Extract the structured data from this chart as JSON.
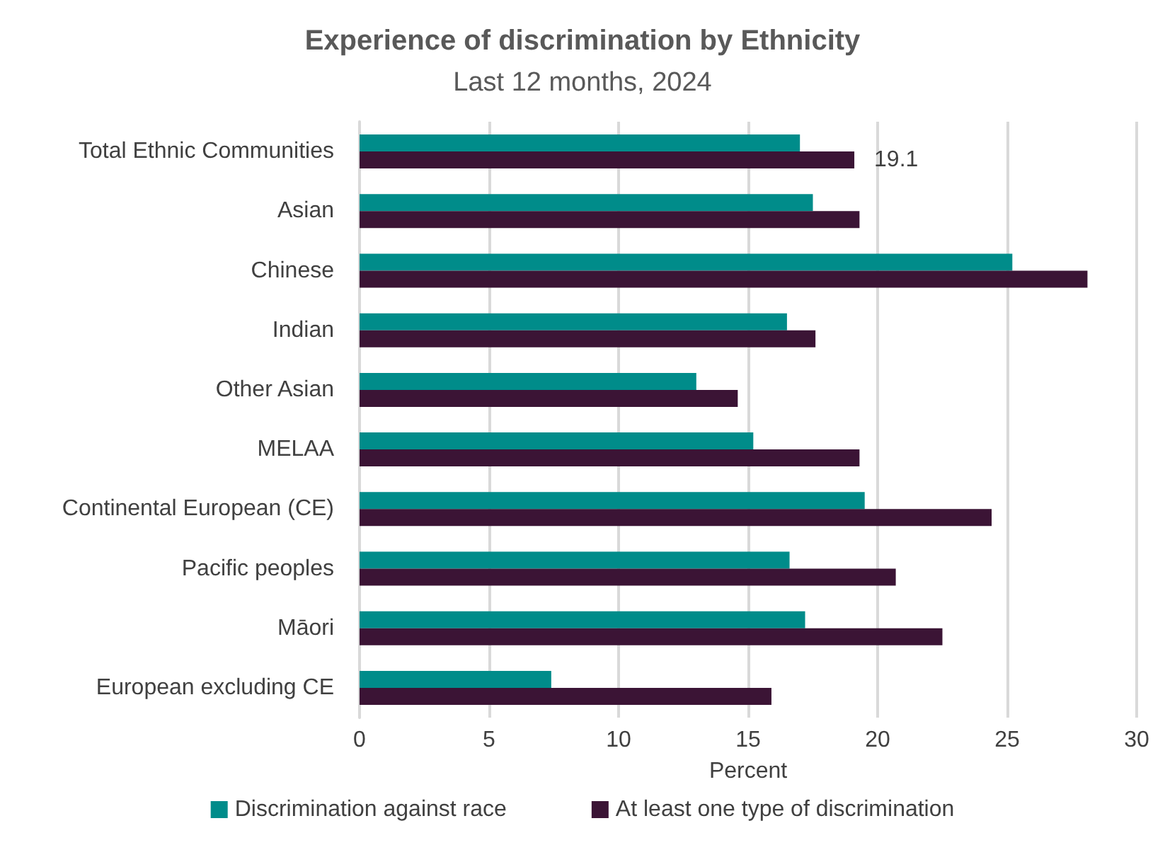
{
  "chart_data": {
    "type": "bar",
    "orientation": "horizontal",
    "title": "Experience of discrimination by Ethnicity",
    "subtitle": "Last 12 months, 2024",
    "xlabel": "Percent",
    "categories": [
      "Total Ethnic Communities",
      "Asian",
      "Chinese",
      "Indian",
      "Other Asian",
      "MELAA",
      "Continental European (CE)",
      "Pacific peoples",
      "Māori",
      "European excluding CE"
    ],
    "series": [
      {
        "name": "Discrimination against race",
        "color": "#008c8a",
        "values": [
          17.0,
          17.5,
          25.2,
          16.5,
          13.0,
          15.2,
          19.5,
          16.6,
          17.2,
          7.4
        ]
      },
      {
        "name": "At least one type of discrimination",
        "color": "#3b1435",
        "values": [
          19.1,
          19.3,
          28.1,
          17.6,
          14.6,
          19.3,
          24.4,
          20.7,
          22.5,
          15.9
        ],
        "value_labels": [
          "19.1",
          null,
          null,
          null,
          null,
          null,
          null,
          null,
          null,
          null
        ]
      }
    ],
    "xlim": [
      0,
      30
    ],
    "xticks": [
      0,
      5,
      10,
      15,
      20,
      25,
      30
    ],
    "grid": "x",
    "legend": "bottom"
  }
}
